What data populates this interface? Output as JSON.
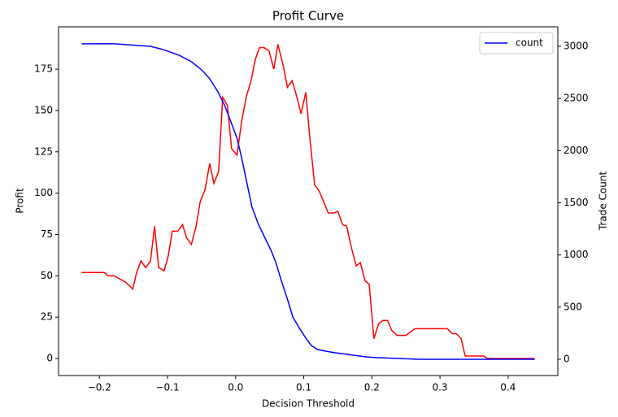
{
  "chart_data": {
    "type": "line",
    "title": "Profit Curve",
    "x_label": "Decision Threshold",
    "y_label": "Profit",
    "y2_label": "Trade Count",
    "legend": "upper right",
    "xlim": [
      -0.26,
      0.473
    ],
    "ylim": [
      -10.3,
      200.6
    ],
    "y2lim": [
      -156,
      3187
    ],
    "xticks": [
      {
        "value": -0.2,
        "label": "−0.2"
      },
      {
        "value": -0.1,
        "label": "−0.1"
      },
      {
        "value": 0,
        "label": "0.0"
      },
      0.1,
      0.2,
      0.3,
      0.4
    ],
    "yticks": [
      0,
      25,
      50,
      75,
      100,
      125,
      150,
      175
    ],
    "y2ticks": [
      0,
      500,
      1000,
      1500,
      2000,
      2500,
      3000
    ],
    "series": [
      {
        "color": "#ff0000",
        "axis": "y",
        "x": [
          -0.226,
          -0.193,
          -0.187,
          -0.178,
          -0.161,
          -0.151,
          -0.146,
          -0.139,
          -0.132,
          -0.125,
          -0.119,
          -0.113,
          -0.105,
          -0.099,
          -0.093,
          -0.085,
          -0.078,
          -0.072,
          -0.065,
          -0.058,
          -0.052,
          -0.045,
          -0.038,
          -0.032,
          -0.025,
          -0.019,
          -0.012,
          -0.006,
          0.002,
          0.009,
          0.016,
          0.022,
          0.029,
          0.035,
          0.042,
          0.049,
          0.056,
          0.062,
          0.07,
          0.076,
          0.083,
          0.09,
          0.096,
          0.103,
          0.109,
          0.116,
          0.123,
          0.129,
          0.136,
          0.144,
          0.15,
          0.157,
          0.163,
          0.17,
          0.177,
          0.183,
          0.19,
          0.196,
          0.203,
          0.21,
          0.216,
          0.223,
          0.229,
          0.237,
          0.25,
          0.263,
          0.311,
          0.318,
          0.324,
          0.331,
          0.337,
          0.364,
          0.37,
          0.439
        ],
        "values": [
          52,
          52,
          50,
          50,
          46,
          42,
          51,
          59,
          55,
          59,
          80,
          55,
          53,
          62,
          77,
          77,
          81,
          73,
          69,
          80,
          95,
          102,
          118,
          106,
          113,
          158,
          153,
          127,
          123,
          144,
          159,
          167,
          181,
          188,
          188,
          186,
          175,
          190,
          177,
          164,
          168,
          158,
          148,
          161,
          133,
          105,
          101,
          95,
          88,
          88,
          89,
          81,
          80,
          67,
          56,
          58,
          47,
          45,
          12,
          21,
          23,
          23,
          17,
          14,
          14,
          18,
          18,
          15,
          15,
          12,
          1.5,
          1.5,
          0,
          0
        ]
      },
      {
        "name": "count",
        "color": "#0000ff",
        "axis": "y2",
        "x": [
          -0.226,
          -0.178,
          -0.125,
          -0.107,
          -0.083,
          -0.065,
          -0.05,
          -0.038,
          -0.026,
          -0.016,
          -0.007,
          0.002,
          0.009,
          0.016,
          0.024,
          0.033,
          0.042,
          0.052,
          0.059,
          0.067,
          0.076,
          0.084,
          0.093,
          0.103,
          0.111,
          0.12,
          0.132,
          0.146,
          0.155,
          0.173,
          0.191,
          0.206,
          0.239,
          0.269,
          0.439
        ],
        "values": [
          3024,
          3024,
          3000,
          2970,
          2915,
          2853,
          2775,
          2689,
          2564,
          2432,
          2276,
          2120,
          1925,
          1707,
          1458,
          1302,
          1177,
          1044,
          928,
          756,
          577,
          405,
          304,
          203,
          133,
          94,
          78,
          62,
          55,
          39,
          23,
          16,
          8,
          0,
          0
        ]
      }
    ]
  }
}
